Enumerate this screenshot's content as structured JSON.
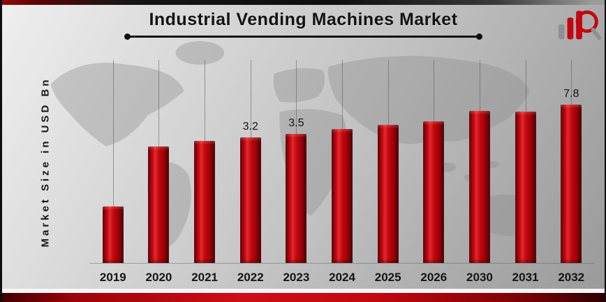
{
  "title": "Industrial Vending Machines Market",
  "y_axis_label": "Market Size in USD Bn",
  "logo": {
    "name": "market-research-bar-chart-magnifier-logo"
  },
  "colors": {
    "bar_red": "#c3070f",
    "bar_red_dark": "#4e0104",
    "bar_red_highlight": "#e12a2f",
    "strip_red": "#cf0d16",
    "text_dark": "#121212",
    "background_gray": "#c2c2c2"
  },
  "chart_data": {
    "type": "bar",
    "title": "Industrial Vending Machines Market",
    "xlabel": "",
    "ylabel": "Market Size in USD Bn",
    "units": "USD Bn",
    "categories": [
      "2019",
      "2020",
      "2021",
      "2022",
      "2023",
      "2024",
      "2025",
      "2026",
      "2030",
      "2031",
      "2032"
    ],
    "values": [
      1.5,
      2.9,
      3.0,
      3.2,
      3.5,
      3.7,
      3.9,
      4.1,
      6.9,
      7.2,
      7.8
    ],
    "data_labels": {
      "2022": "3.2",
      "2023": "3.5",
      "2032": "7.8"
    },
    "bar_heights_pct": [
      28,
      57.5,
      60.3,
      62,
      63.7,
      66.1,
      68.2,
      69.9,
      75,
      74.5,
      78
    ],
    "grid": "vertical-gridlines-per-category",
    "legend": "none",
    "bar_color": "#c3070f"
  }
}
